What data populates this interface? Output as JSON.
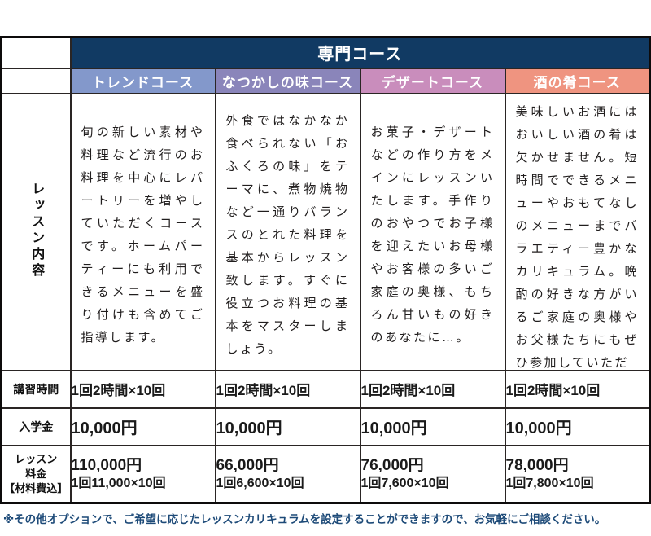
{
  "header": {
    "title": "専門コース"
  },
  "row_labels": {
    "lesson_content": "レッスン内容",
    "hours": "講習時間",
    "admission": "入学金",
    "fee": "レッスン\n料金\n【材料費込】"
  },
  "courses": [
    {
      "name": "トレンドコース",
      "header_color": "#8398cb",
      "description": "旬の新しい素材や料理など流行のお料理を中心にレパートリーを増やしていただくコースです。ホームパーティーにも利用できるメニューを盛り付けも含めてご指導します。",
      "hours": "1回2時間×10回",
      "admission": "10,000円",
      "fee_total": "110,000円",
      "fee_detail": "1回11,000×10回"
    },
    {
      "name": "なつかしの味コース",
      "header_color": "#8a85ba",
      "description": "外食ではなかなか食べられない「おふくろの味」をテーマに、煮物焼物など一通りバランスのとれた料理を基本からレッスン致します。すぐに役立つお料理の基本をマスターしましょう。",
      "hours": "1回2時間×10回",
      "admission": "10,000円",
      "fee_total": "66,000円",
      "fee_detail": "1回6,600×10回"
    },
    {
      "name": "デザートコース",
      "header_color": "#c98dbc",
      "description": "お菓子・デザートなどの作り方をメインにレッスンいたします。手作りのおやつでお子様を迎えたいお母様やお客様の多いご家庭の奥様、もちろん甘いもの好きのあなたに…。",
      "hours": "1回2時間×10回",
      "admission": "10,000円",
      "fee_total": "76,000円",
      "fee_detail": "1回7,600×10回"
    },
    {
      "name": "酒の肴コース",
      "header_color": "#ef9480",
      "description": "美味しいお酒にはおいしい酒の肴は欠かせません。短時間でできるメニューやおもてなしのメニューまでバラエティー豊かなカリキュラム。晩酌の好きな方がいるご家庭の奥様やお父様たちにもぜひ参加していただ",
      "hours": "1回2時間×10回",
      "admission": "10,000円",
      "fee_total": "78,000円",
      "fee_detail": "1回7,800×10回"
    }
  ],
  "footnote": "※その他オプションで、ご希望に応じたレッスンカリキュラムを設定することができますので、お気軽にご相談ください。",
  "colors": {
    "header_bg": "#113a63",
    "footnote_text": "#1d4a78",
    "border": "#2a2524"
  }
}
